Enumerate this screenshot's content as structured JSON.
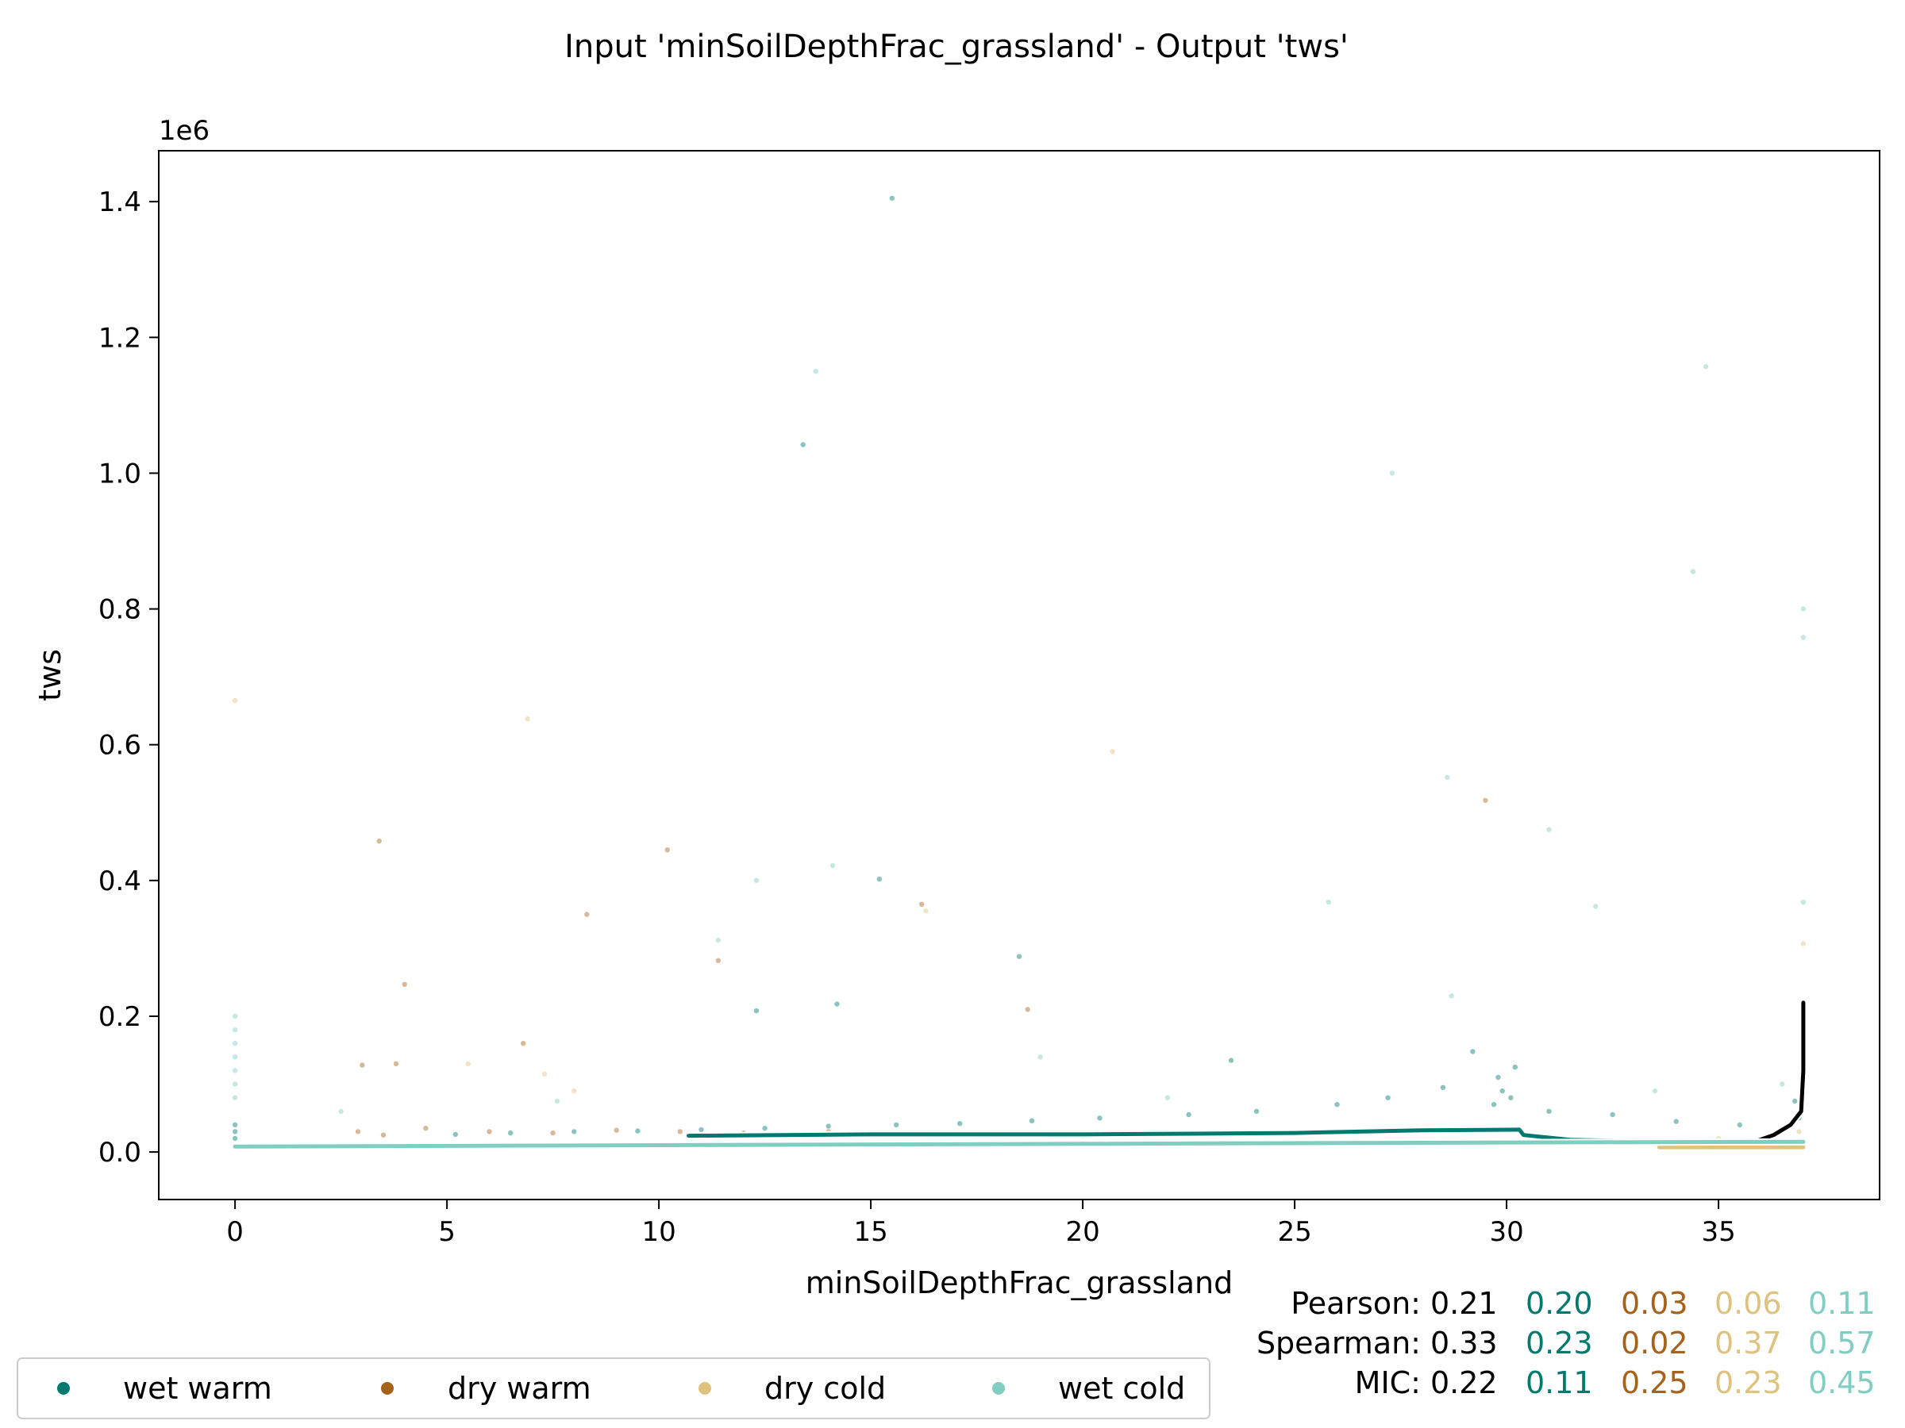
{
  "chart_data": {
    "type": "scatter",
    "title": "Input 'minSoilDepthFrac_grassland' - Output 'tws'",
    "xlabel": "minSoilDepthFrac_grassland",
    "ylabel": "tws",
    "y_multiplier_label": "1e6",
    "xlim": [
      -1.8,
      38.8
    ],
    "ylim": [
      -70000,
      1475000
    ],
    "xticks": [
      0,
      5,
      10,
      15,
      20,
      25,
      30,
      35
    ],
    "yticks": [
      0,
      200000,
      400000,
      600000,
      800000,
      1000000,
      1200000,
      1400000
    ],
    "ytick_labels": [
      "0.0",
      "0.2",
      "0.4",
      "0.6",
      "0.8",
      "1.0",
      "1.2",
      "1.4"
    ],
    "grid": false,
    "legend_position": "bottom-left",
    "series": [
      {
        "name": "wet warm",
        "color": "#01796f",
        "points": [
          [
            15.5,
            1405000
          ],
          [
            13.4,
            1042000
          ],
          [
            15.2,
            402000
          ],
          [
            14.2,
            218000
          ],
          [
            12.3,
            208000
          ],
          [
            18.5,
            288000
          ],
          [
            23.5,
            135000
          ],
          [
            29.2,
            148000
          ],
          [
            30.2,
            125000
          ],
          [
            29.8,
            110000
          ],
          [
            28.5,
            95000
          ],
          [
            27.2,
            80000
          ],
          [
            26.0,
            70000
          ],
          [
            24.1,
            60000
          ],
          [
            22.5,
            55000
          ],
          [
            20.4,
            50000
          ],
          [
            18.8,
            46000
          ],
          [
            17.1,
            42000
          ],
          [
            15.6,
            40000
          ],
          [
            14.0,
            38000
          ],
          [
            12.5,
            35000
          ],
          [
            11.0,
            33000
          ],
          [
            9.5,
            31000
          ],
          [
            8.0,
            30000
          ],
          [
            6.5,
            28000
          ],
          [
            5.2,
            26000
          ],
          [
            31.0,
            60000
          ],
          [
            32.5,
            55000
          ],
          [
            34.0,
            45000
          ],
          [
            35.5,
            40000
          ],
          [
            36.8,
            75000
          ],
          [
            36.9,
            50000
          ],
          [
            29.9,
            90000
          ],
          [
            30.1,
            80000
          ],
          [
            29.7,
            70000
          ],
          [
            0.0,
            30000
          ],
          [
            0.0,
            40000
          ],
          [
            0.0,
            20000
          ]
        ]
      },
      {
        "name": "dry warm",
        "color": "#a6611a",
        "points": [
          [
            3.4,
            458000
          ],
          [
            10.2,
            445000
          ],
          [
            8.3,
            350000
          ],
          [
            4.0,
            247000
          ],
          [
            11.4,
            282000
          ],
          [
            16.2,
            365000
          ],
          [
            18.7,
            210000
          ],
          [
            29.5,
            518000
          ],
          [
            3.0,
            128000
          ],
          [
            3.8,
            130000
          ],
          [
            6.8,
            160000
          ],
          [
            2.9,
            30000
          ],
          [
            3.5,
            25000
          ],
          [
            4.5,
            35000
          ],
          [
            6.0,
            30000
          ],
          [
            7.5,
            28000
          ],
          [
            9.0,
            32000
          ],
          [
            10.5,
            30000
          ],
          [
            12.0,
            28000
          ],
          [
            14.0,
            30000
          ],
          [
            15.8,
            27000
          ],
          [
            17.5,
            25000
          ],
          [
            20.0,
            24000
          ]
        ]
      },
      {
        "name": "dry cold",
        "color": "#dfc27d",
        "points": [
          [
            0.0,
            665000
          ],
          [
            6.9,
            638000
          ],
          [
            20.7,
            590000
          ],
          [
            37.0,
            307000
          ],
          [
            16.3,
            355000
          ],
          [
            5.5,
            130000
          ],
          [
            7.3,
            115000
          ],
          [
            8.0,
            90000
          ],
          [
            36.9,
            30000
          ],
          [
            35.0,
            20000
          ]
        ]
      },
      {
        "name": "wet cold",
        "color": "#80cdc1",
        "points": [
          [
            13.7,
            1150000
          ],
          [
            34.7,
            1157000
          ],
          [
            27.3,
            1000000
          ],
          [
            34.4,
            855000
          ],
          [
            37.0,
            800000
          ],
          [
            37.0,
            758000
          ],
          [
            28.6,
            552000
          ],
          [
            31.0,
            475000
          ],
          [
            14.1,
            422000
          ],
          [
            12.3,
            400000
          ],
          [
            25.8,
            368000
          ],
          [
            32.1,
            362000
          ],
          [
            37.0,
            368000
          ],
          [
            11.4,
            312000
          ],
          [
            0.0,
            200000
          ],
          [
            0.0,
            180000
          ],
          [
            0.0,
            160000
          ],
          [
            0.0,
            140000
          ],
          [
            0.0,
            120000
          ],
          [
            0.0,
            100000
          ],
          [
            0.0,
            80000
          ],
          [
            2.5,
            60000
          ],
          [
            7.6,
            75000
          ],
          [
            19.0,
            140000
          ],
          [
            22.0,
            80000
          ],
          [
            28.7,
            230000
          ],
          [
            33.5,
            90000
          ],
          [
            36.5,
            100000
          ]
        ]
      }
    ],
    "trend_lines": [
      {
        "name": "all",
        "color": "#000000",
        "points": [
          [
            35.7,
            12000
          ],
          [
            36.3,
            25000
          ],
          [
            36.7,
            40000
          ],
          [
            36.95,
            60000
          ],
          [
            37.0,
            120000
          ],
          [
            37.0,
            220000
          ]
        ]
      },
      {
        "name": "wet warm",
        "color": "#01796f",
        "points": [
          [
            10.7,
            24000
          ],
          [
            15.0,
            26000
          ],
          [
            20.0,
            26000
          ],
          [
            25.0,
            28000
          ],
          [
            28.0,
            32000
          ],
          [
            30.3,
            33000
          ],
          [
            30.4,
            25000
          ],
          [
            31.5,
            18000
          ],
          [
            33.0,
            16000
          ]
        ]
      },
      {
        "name": "dry cold",
        "color": "#dfc27d",
        "points": [
          [
            33.6,
            7000
          ],
          [
            37.0,
            7000
          ]
        ]
      },
      {
        "name": "wet cold",
        "color": "#80cdc1",
        "points": [
          [
            0.0,
            8000
          ],
          [
            10.0,
            10000
          ],
          [
            20.0,
            12000
          ],
          [
            30.0,
            14000
          ],
          [
            37.0,
            15000
          ]
        ]
      }
    ],
    "stats": {
      "pearson": {
        "label": "Pearson:",
        "all": "0.21",
        "wet_warm": "0.20",
        "dry_warm": "0.03",
        "dry_cold": "0.06",
        "wet_cold": "0.11"
      },
      "spearman": {
        "label": "Spearman:",
        "all": "0.33",
        "wet_warm": "0.23",
        "dry_warm": "0.02",
        "dry_cold": "0.37",
        "wet_cold": "0.57"
      },
      "mic": {
        "label": "MIC:",
        "all": "0.22",
        "wet_warm": "0.11",
        "dry_warm": "0.25",
        "dry_cold": "0.23",
        "wet_cold": "0.45"
      }
    }
  }
}
